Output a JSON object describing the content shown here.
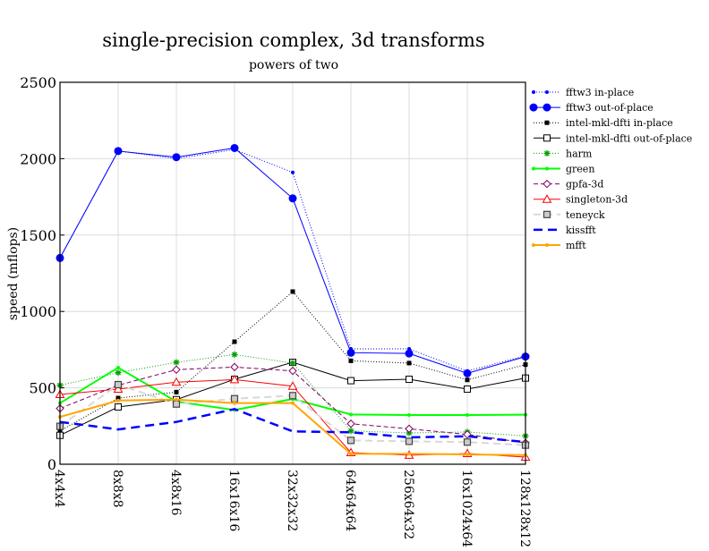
{
  "chart_data": {
    "type": "line",
    "title": "single-precision complex, 3d transforms",
    "subtitle": "powers of two",
    "xlabel": "",
    "ylabel": "speed (mflops)",
    "ylim": [
      0,
      2500
    ],
    "yticks": [
      0,
      500,
      1000,
      1500,
      2000,
      2500
    ],
    "grid": true,
    "legend_position": "right",
    "categories": [
      "4x4x4",
      "8x8x8",
      "4x8x16",
      "16x16x16",
      "32x32x32",
      "64x64x64",
      "256x64x32",
      "16x1024x64",
      "128x128x128"
    ],
    "series": [
      {
        "name": "fftw3 in-place",
        "color": "#0000ff",
        "dash": "1,2",
        "marker": "dot-small",
        "width": 1,
        "values": [
          1350,
          2050,
          2000,
          2060,
          1910,
          755,
          755,
          610,
          710
        ]
      },
      {
        "name": "fftw3 out-of-place",
        "color": "#0000ff",
        "dash": "",
        "marker": "dot-large",
        "width": 1,
        "values": [
          1350,
          2050,
          2010,
          2070,
          1740,
          730,
          725,
          595,
          705
        ]
      },
      {
        "name": "intel-mkl-dfti in-place",
        "color": "#000000",
        "dash": "1,2",
        "marker": "square-filled",
        "width": 1,
        "values": [
          218,
          433,
          472,
          802,
          1130,
          677,
          662,
          552,
          652
        ]
      },
      {
        "name": "intel-mkl-dfti out-of-place",
        "color": "#000000",
        "dash": "",
        "marker": "square-open",
        "width": 1,
        "values": [
          189,
          375,
          423,
          556,
          667,
          547,
          556,
          492,
          564
        ]
      },
      {
        "name": "harm",
        "color": "#00a000",
        "dash": "1,2",
        "marker": "star",
        "width": 1,
        "values": [
          517,
          599,
          667,
          718,
          662,
          218,
          205,
          211,
          185
        ]
      },
      {
        "name": "green",
        "color": "#00ff00",
        "dash": "",
        "marker": "dot-small",
        "width": 2,
        "values": [
          400,
          632,
          410,
          355,
          427,
          326,
          322,
          322,
          324
        ]
      },
      {
        "name": "gpfa-3d",
        "color": "#800060",
        "dash": "5,3",
        "marker": "diamond",
        "width": 1,
        "values": [
          365,
          517,
          619,
          636,
          611,
          265,
          232,
          195,
          140
        ]
      },
      {
        "name": "singleton-3d",
        "color": "#ff0000",
        "dash": "",
        "marker": "triangle",
        "width": 1,
        "values": [
          457,
          492,
          537,
          554,
          511,
          76,
          59,
          70,
          47
        ]
      },
      {
        "name": "teneyck",
        "color": "#d8d8d8",
        "dash": "8,5",
        "marker": "square-gray",
        "width": 2,
        "values": [
          248,
          521,
          394,
          429,
          449,
          156,
          150,
          145,
          125
        ]
      },
      {
        "name": "kissfft",
        "color": "#0000ff",
        "dash": "10,6",
        "marker": "none",
        "width": 2.5,
        "values": [
          277,
          228,
          277,
          361,
          215,
          209,
          176,
          183,
          145
        ]
      },
      {
        "name": "mfft",
        "color": "#ffa500",
        "dash": "",
        "marker": "dot-small",
        "width": 2,
        "values": [
          310,
          417,
          423,
          400,
          400,
          68,
          68,
          64,
          60
        ]
      }
    ]
  }
}
